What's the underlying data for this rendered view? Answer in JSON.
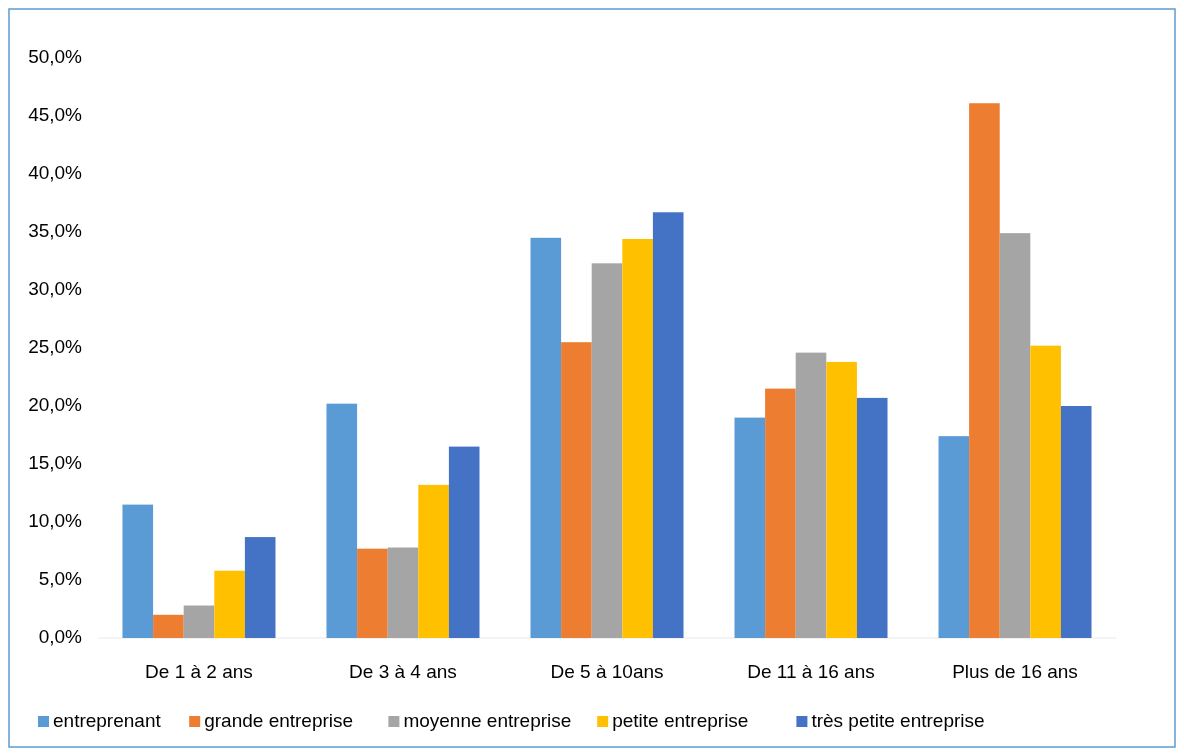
{
  "chart_data": {
    "type": "bar",
    "categories": [
      "De 1 à 2 ans",
      "De 3 à 4 ans",
      "De 5 à 10ans",
      "De 11 à 16 ans",
      "Plus de 16 ans"
    ],
    "series": [
      {
        "name": "entreprenant",
        "color": "#5b9bd5",
        "values": [
          11.5,
          20.2,
          34.5,
          19.0,
          17.4
        ]
      },
      {
        "name": "grande entreprise",
        "color": "#ed7d31",
        "values": [
          2.0,
          7.7,
          25.5,
          21.5,
          46.1
        ]
      },
      {
        "name": "moyenne entreprise",
        "color": "#a5a5a5",
        "values": [
          2.8,
          7.8,
          32.3,
          24.6,
          34.9
        ]
      },
      {
        "name": "petite entreprise",
        "color": "#ffc000",
        "values": [
          5.8,
          13.2,
          34.4,
          23.8,
          25.2
        ]
      },
      {
        "name": "très petite entreprise",
        "color": "#4472c4",
        "values": [
          8.7,
          16.5,
          36.7,
          20.7,
          20.0
        ]
      }
    ],
    "ylim": [
      0,
      50
    ],
    "yticks": [
      {
        "value": 0,
        "label": "0,0%"
      },
      {
        "value": 5,
        "label": "5,0%"
      },
      {
        "value": 10,
        "label": "10,0%"
      },
      {
        "value": 15,
        "label": "15,0%"
      },
      {
        "value": 20,
        "label": "20,0%"
      },
      {
        "value": 25,
        "label": "25,0%"
      },
      {
        "value": 30,
        "label": "30,0%"
      },
      {
        "value": 35,
        "label": "35,0%"
      },
      {
        "value": 40,
        "label": "40,0%"
      },
      {
        "value": 45,
        "label": "45,0%"
      },
      {
        "value": 50,
        "label": "50,0%"
      }
    ],
    "grid": false,
    "legend": "bottom"
  }
}
